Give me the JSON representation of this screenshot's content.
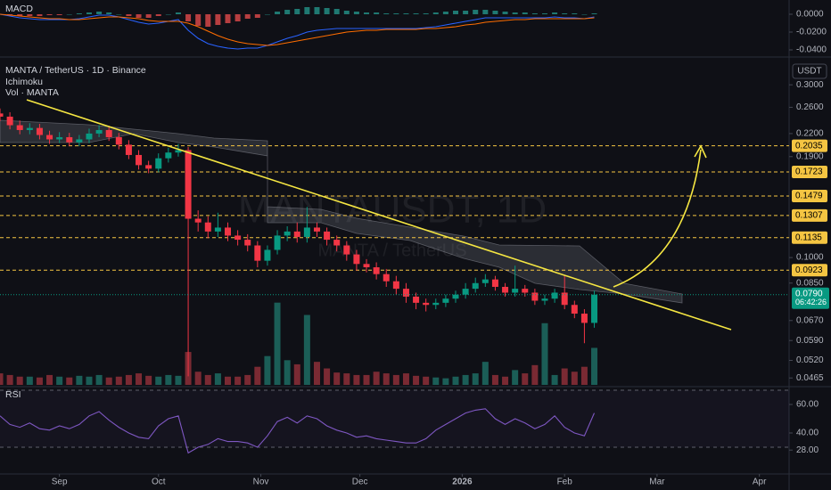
{
  "chart_data": [
    {
      "type": "candlestick",
      "title": "MANTA / TetherUS · 1D · Binance",
      "watermark": "MANTAUSDT, 1D",
      "watermark_subtitle": "MANTA / TetherUS",
      "indicators": [
        "Ichimoku",
        "Vol · MANTA"
      ],
      "axis_unit": "USDT",
      "log_scale": true,
      "colors": {
        "up": "#089981",
        "down": "#f23645",
        "volume_up": "#1b5e57",
        "volume_down": "#7a2a33",
        "level": "#f5c542"
      },
      "x": [
        -18,
        -15,
        -12,
        -9,
        -6,
        -3,
        0,
        3,
        6,
        9,
        12,
        15,
        18,
        21,
        24,
        27,
        30,
        33,
        36,
        39,
        42,
        45,
        48,
        51,
        54,
        57,
        60,
        63,
        66,
        69,
        72,
        75,
        78,
        81,
        84,
        87,
        90,
        93,
        96,
        99,
        102,
        105,
        108,
        111,
        114,
        117,
        120,
        123,
        126,
        129,
        132,
        135,
        138,
        141,
        144,
        147,
        150,
        153,
        156,
        159,
        162
      ],
      "candles": {
        "open": [
          0.25,
          0.245,
          0.232,
          0.225,
          0.228,
          0.218,
          0.212,
          0.215,
          0.208,
          0.212,
          0.22,
          0.225,
          0.215,
          0.205,
          0.192,
          0.18,
          0.176,
          0.188,
          0.195,
          0.198,
          0.128,
          0.125,
          0.118,
          0.121,
          0.115,
          0.112,
          0.108,
          0.098,
          0.105,
          0.115,
          0.118,
          0.114,
          0.121,
          0.118,
          0.112,
          0.108,
          0.102,
          0.096,
          0.094,
          0.09,
          0.086,
          0.082,
          0.078,
          0.075,
          0.074,
          0.075,
          0.077,
          0.079,
          0.082,
          0.085,
          0.087,
          0.083,
          0.08,
          0.082,
          0.08,
          0.076,
          0.077,
          0.08,
          0.074,
          0.07,
          0.066
        ],
        "high": [
          0.258,
          0.252,
          0.239,
          0.235,
          0.234,
          0.224,
          0.222,
          0.221,
          0.218,
          0.227,
          0.232,
          0.231,
          0.221,
          0.211,
          0.198,
          0.185,
          0.194,
          0.201,
          0.206,
          0.202,
          0.135,
          0.13,
          0.133,
          0.125,
          0.119,
          0.116,
          0.111,
          0.108,
          0.119,
          0.122,
          0.125,
          0.138,
          0.125,
          0.121,
          0.115,
          0.111,
          0.105,
          0.099,
          0.097,
          0.093,
          0.089,
          0.085,
          0.08,
          0.077,
          0.077,
          0.079,
          0.081,
          0.085,
          0.088,
          0.09,
          0.089,
          0.085,
          0.095,
          0.084,
          0.082,
          0.079,
          0.082,
          0.089,
          0.076,
          0.072,
          0.081
        ],
        "low": [
          0.238,
          0.226,
          0.219,
          0.219,
          0.212,
          0.206,
          0.207,
          0.203,
          0.203,
          0.207,
          0.215,
          0.21,
          0.199,
          0.187,
          0.175,
          0.171,
          0.172,
          0.183,
          0.19,
          0.047,
          0.118,
          0.113,
          0.114,
          0.111,
          0.108,
          0.104,
          0.094,
          0.095,
          0.102,
          0.111,
          0.11,
          0.11,
          0.114,
          0.108,
          0.104,
          0.098,
          0.092,
          0.091,
          0.087,
          0.083,
          0.079,
          0.075,
          0.072,
          0.071,
          0.072,
          0.073,
          0.075,
          0.077,
          0.08,
          0.083,
          0.081,
          0.078,
          0.078,
          0.078,
          0.074,
          0.074,
          0.075,
          0.072,
          0.068,
          0.058,
          0.064
        ],
        "close": [
          0.245,
          0.232,
          0.225,
          0.228,
          0.218,
          0.212,
          0.215,
          0.208,
          0.212,
          0.22,
          0.225,
          0.215,
          0.205,
          0.192,
          0.18,
          0.176,
          0.188,
          0.195,
          0.198,
          0.128,
          0.125,
          0.118,
          0.121,
          0.115,
          0.112,
          0.108,
          0.098,
          0.105,
          0.115,
          0.118,
          0.114,
          0.121,
          0.118,
          0.112,
          0.108,
          0.102,
          0.096,
          0.094,
          0.09,
          0.086,
          0.082,
          0.078,
          0.075,
          0.074,
          0.075,
          0.077,
          0.079,
          0.082,
          0.085,
          0.087,
          0.083,
          0.08,
          0.082,
          0.08,
          0.076,
          0.077,
          0.08,
          0.074,
          0.07,
          0.066,
          0.079
        ]
      },
      "volume": [
        14,
        12,
        10,
        10,
        9,
        12,
        10,
        9,
        11,
        10,
        12,
        9,
        10,
        12,
        14,
        11,
        10,
        12,
        11,
        40,
        16,
        12,
        14,
        10,
        10,
        12,
        22,
        35,
        100,
        30,
        25,
        85,
        28,
        20,
        15,
        14,
        12,
        12,
        16,
        14,
        12,
        14,
        11,
        10,
        9,
        8,
        10,
        12,
        14,
        28,
        12,
        10,
        18,
        14,
        24,
        75,
        12,
        20,
        16,
        22,
        45
      ],
      "vlim": [
        0,
        130
      ],
      "xlim": [
        -18,
        221
      ],
      "xticks": [
        {
          "value": 0,
          "label": "Sep"
        },
        {
          "value": 30,
          "label": "Oct"
        },
        {
          "value": 61,
          "label": "Nov"
        },
        {
          "value": 91,
          "label": "Dec"
        },
        {
          "value": 122,
          "label": "2026"
        },
        {
          "value": 153,
          "label": "Feb"
        },
        {
          "value": 181,
          "label": "Mar"
        },
        {
          "value": 212,
          "label": "Apr"
        }
      ],
      "ylim": [
        0.0445,
        0.346
      ],
      "yticks": [
        {
          "value": 0.3,
          "label": "0.3000"
        },
        {
          "value": 0.26,
          "label": "0.2600"
        },
        {
          "value": 0.22,
          "label": "0.2200"
        },
        {
          "value": 0.19,
          "label": "0.1900"
        },
        {
          "value": 0.1,
          "label": "0.1000"
        },
        {
          "value": 0.085,
          "label": "0.0850"
        },
        {
          "value": 0.067,
          "label": "0.0670"
        },
        {
          "value": 0.059,
          "label": "0.0590"
        },
        {
          "value": 0.052,
          "label": "0.0520"
        },
        {
          "value": 0.0465,
          "label": "0.0465"
        }
      ],
      "levels": [
        {
          "value": 0.2035,
          "label": "0.2035"
        },
        {
          "value": 0.1723,
          "label": "0.1723"
        },
        {
          "value": 0.1479,
          "label": "0.1479"
        },
        {
          "value": 0.1307,
          "label": "0.1307"
        },
        {
          "value": 0.1135,
          "label": "0.1135"
        },
        {
          "value": 0.0923,
          "label": "0.0923"
        }
      ],
      "last_price": {
        "value": 0.079,
        "label": "0.0790",
        "countdown": "06:42:26"
      }
    },
    {
      "type": "macd",
      "title": "MACD",
      "colors": {
        "macd": "#2962ff",
        "signal": "#ff6d00",
        "hist_up": "#26a69a",
        "hist_down": "#ff5252"
      },
      "macd": [
        0.0,
        -0.002,
        -0.004,
        -0.005,
        -0.006,
        -0.006,
        -0.006,
        -0.006,
        -0.005,
        -0.003,
        -0.001,
        -0.001,
        -0.003,
        -0.006,
        -0.009,
        -0.011,
        -0.01,
        -0.008,
        -0.006,
        -0.018,
        -0.027,
        -0.033,
        -0.036,
        -0.038,
        -0.039,
        -0.038,
        -0.038,
        -0.035,
        -0.031,
        -0.027,
        -0.024,
        -0.02,
        -0.018,
        -0.017,
        -0.016,
        -0.016,
        -0.016,
        -0.016,
        -0.016,
        -0.016,
        -0.016,
        -0.016,
        -0.016,
        -0.015,
        -0.014,
        -0.012,
        -0.01,
        -0.008,
        -0.006,
        -0.004,
        -0.004,
        -0.004,
        -0.004,
        -0.004,
        -0.004,
        -0.004,
        -0.003,
        -0.004,
        -0.004,
        -0.005,
        -0.003
      ],
      "signal": [
        0.0,
        -0.001,
        -0.002,
        -0.003,
        -0.004,
        -0.005,
        -0.005,
        -0.006,
        -0.006,
        -0.005,
        -0.004,
        -0.003,
        -0.003,
        -0.004,
        -0.005,
        -0.007,
        -0.008,
        -0.008,
        -0.008,
        -0.01,
        -0.014,
        -0.019,
        -0.024,
        -0.028,
        -0.031,
        -0.033,
        -0.034,
        -0.035,
        -0.034,
        -0.032,
        -0.03,
        -0.028,
        -0.026,
        -0.024,
        -0.022,
        -0.02,
        -0.019,
        -0.018,
        -0.018,
        -0.017,
        -0.017,
        -0.017,
        -0.017,
        -0.016,
        -0.016,
        -0.015,
        -0.014,
        -0.012,
        -0.011,
        -0.009,
        -0.008,
        -0.007,
        -0.006,
        -0.006,
        -0.005,
        -0.005,
        -0.005,
        -0.005,
        -0.005,
        -0.005,
        -0.004
      ],
      "histogram": [
        0,
        -0.001,
        -0.002,
        -0.002,
        -0.002,
        -0.001,
        -0.001,
        0,
        0.001,
        0.002,
        0.003,
        0.002,
        0,
        -0.002,
        -0.004,
        -0.004,
        -0.002,
        0,
        0.002,
        -0.008,
        -0.013,
        -0.014,
        -0.012,
        -0.01,
        -0.008,
        -0.005,
        -0.004,
        0,
        0.003,
        0.005,
        0.006,
        0.008,
        0.008,
        0.007,
        0.006,
        0.004,
        0.003,
        0.002,
        0.002,
        0.001,
        0.001,
        0.001,
        0.001,
        0.001,
        0.002,
        0.003,
        0.004,
        0.004,
        0.005,
        0.005,
        0.004,
        0.003,
        0.002,
        0.002,
        0.001,
        0.001,
        0.002,
        0.001,
        0.001,
        0,
        0.001
      ],
      "ylim": [
        -0.046,
        0.016
      ],
      "yticks": [
        {
          "value": 0,
          "label": "0.0000"
        },
        {
          "value": -0.02,
          "label": "-0.0200"
        },
        {
          "value": -0.04,
          "label": "-0.0400"
        }
      ]
    },
    {
      "type": "rsi",
      "title": "RSI",
      "color": "#7e57c2",
      "values": [
        52,
        46,
        44,
        47,
        43,
        42,
        45,
        43,
        46,
        52,
        55,
        49,
        44,
        40,
        37,
        36,
        45,
        50,
        52,
        26,
        30,
        32,
        36,
        34,
        34,
        33,
        30,
        38,
        48,
        51,
        47,
        52,
        50,
        45,
        42,
        40,
        37,
        38,
        36,
        35,
        34,
        33,
        33,
        36,
        42,
        46,
        50,
        54,
        56,
        57,
        50,
        46,
        50,
        47,
        43,
        46,
        52,
        44,
        40,
        38,
        54
      ],
      "bands": [
        70,
        30
      ],
      "ylim": [
        12.5,
        70
      ],
      "yticks": [
        {
          "value": 60,
          "label": "60.00"
        },
        {
          "value": 40,
          "label": "40.00"
        },
        {
          "value": 28,
          "label": "28.00"
        }
      ]
    }
  ]
}
